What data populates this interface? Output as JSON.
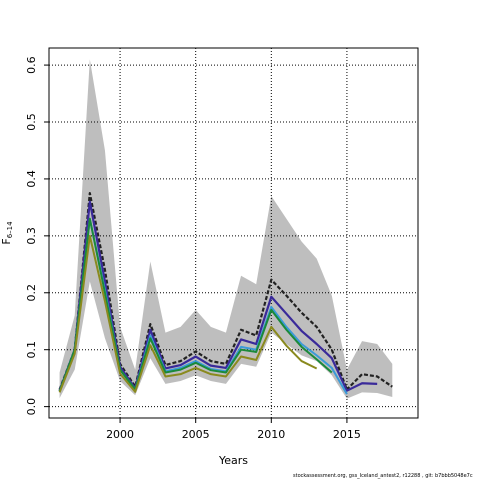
{
  "chart_data": {
    "type": "line",
    "xlabel": "Years",
    "ylabel": "F",
    "ylabel_subscript": "6–14",
    "xlim": [
      1995.3,
      2019.7
    ],
    "ylim": [
      -0.02,
      0.63
    ],
    "xticks": [
      2000,
      2005,
      2010,
      2015
    ],
    "yticks": [
      0.0,
      0.1,
      0.2,
      0.3,
      0.4,
      0.5,
      0.6
    ],
    "ytick_labels": [
      "0.0",
      "0.1",
      "0.2",
      "0.3",
      "0.4",
      "0.5",
      "0.6"
    ],
    "grid": true,
    "band": {
      "color": "#bebebe",
      "x": [
        1996,
        1997,
        1998,
        1999,
        2000,
        2001,
        2002,
        2003,
        2004,
        2005,
        2006,
        2007,
        2008,
        2009,
        2010,
        2011,
        2012,
        2013,
        2014,
        2015,
        2016,
        2017,
        2018
      ],
      "upper": [
        0.06,
        0.16,
        0.61,
        0.45,
        0.14,
        0.065,
        0.255,
        0.13,
        0.14,
        0.17,
        0.14,
        0.13,
        0.23,
        0.215,
        0.37,
        0.33,
        0.29,
        0.26,
        0.195,
        0.065,
        0.115,
        0.11,
        0.075
      ],
      "lower": [
        0.015,
        0.065,
        0.22,
        0.12,
        0.045,
        0.02,
        0.085,
        0.04,
        0.045,
        0.055,
        0.045,
        0.04,
        0.075,
        0.07,
        0.13,
        0.11,
        0.09,
        0.08,
        0.055,
        0.014,
        0.025,
        0.024,
        0.017
      ]
    },
    "series": [
      {
        "color": "#222222",
        "dashed": true,
        "width": 2.2,
        "x": [
          1996,
          1997,
          1998,
          1999,
          2000,
          2001,
          2002,
          2003,
          2004,
          2005,
          2006,
          2007,
          2008,
          2009,
          2010,
          2011,
          2012,
          2013,
          2014,
          2015,
          2016,
          2017,
          2018
        ],
        "values": [
          0.03,
          0.1,
          0.375,
          0.24,
          0.075,
          0.035,
          0.145,
          0.073,
          0.08,
          0.097,
          0.08,
          0.075,
          0.135,
          0.125,
          0.223,
          0.195,
          0.165,
          0.14,
          0.1,
          0.03,
          0.057,
          0.053,
          0.035
        ]
      },
      {
        "color": "#3a2a9a",
        "dashed": false,
        "width": 2.2,
        "x": [
          1996,
          1997,
          1998,
          1999,
          2000,
          2001,
          2002,
          2003,
          2004,
          2005,
          2006,
          2007,
          2008,
          2009,
          2010,
          2011,
          2012,
          2013,
          2014,
          2015,
          2016,
          2017
        ],
        "values": [
          0.028,
          0.1,
          0.36,
          0.22,
          0.07,
          0.032,
          0.135,
          0.067,
          0.073,
          0.088,
          0.072,
          0.068,
          0.118,
          0.11,
          0.193,
          0.163,
          0.133,
          0.11,
          0.085,
          0.028,
          0.041,
          0.04
        ]
      },
      {
        "color": "#3a9ad8",
        "dashed": false,
        "width": 2.0,
        "x": [
          1996,
          1997,
          1998,
          1999,
          2000,
          2001,
          2002,
          2003,
          2004,
          2005,
          2006,
          2007,
          2008,
          2009,
          2010,
          2011,
          2012,
          2013,
          2014,
          2015
        ],
        "values": [
          0.027,
          0.1,
          0.33,
          0.205,
          0.065,
          0.03,
          0.125,
          0.062,
          0.068,
          0.08,
          0.066,
          0.062,
          0.105,
          0.1,
          0.175,
          0.14,
          0.11,
          0.09,
          0.068,
          0.022
        ]
      },
      {
        "color": "#1b8a3a",
        "dashed": false,
        "width": 2.0,
        "x": [
          1996,
          1997,
          1998,
          1999,
          2000,
          2001,
          2002,
          2003,
          2004,
          2005,
          2006,
          2007,
          2008,
          2009,
          2010,
          2011,
          2012,
          2013,
          2014
        ],
        "values": [
          0.027,
          0.1,
          0.33,
          0.2,
          0.065,
          0.03,
          0.12,
          0.06,
          0.065,
          0.077,
          0.064,
          0.06,
          0.1,
          0.096,
          0.17,
          0.135,
          0.105,
          0.083,
          0.06
        ]
      },
      {
        "color": "#8a8a1e",
        "dashed": false,
        "width": 2.0,
        "x": [
          1996,
          1997,
          1998,
          1999,
          2000,
          2001,
          2002,
          2003,
          2004,
          2005,
          2006,
          2007,
          2008,
          2009,
          2010,
          2011,
          2012,
          2013
        ],
        "values": [
          0.025,
          0.093,
          0.3,
          0.185,
          0.058,
          0.026,
          0.108,
          0.053,
          0.057,
          0.068,
          0.057,
          0.053,
          0.088,
          0.082,
          0.14,
          0.107,
          0.08,
          0.067
        ]
      }
    ]
  },
  "footer": "stockassessment.org, gss_Iceland_antest2, r12288 , git: b7bbb5048e7c"
}
